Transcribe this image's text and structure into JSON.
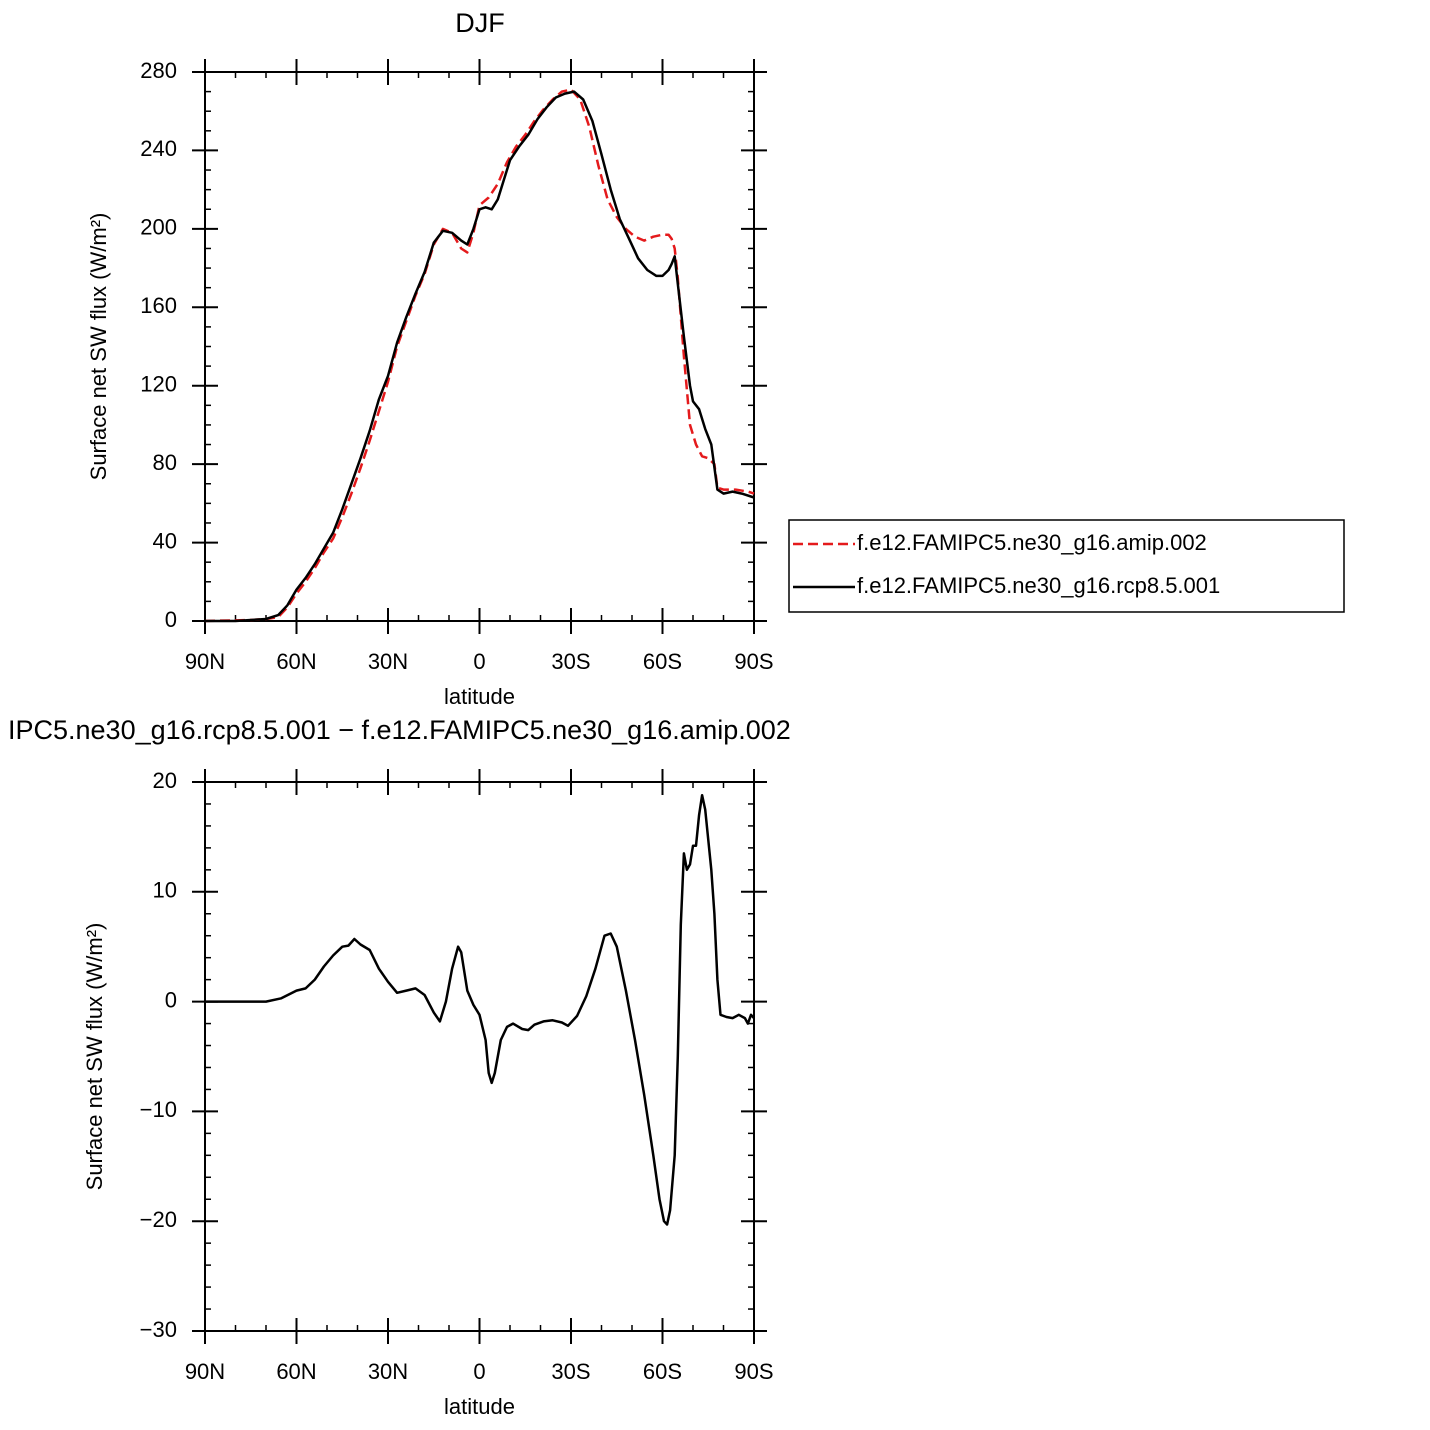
{
  "chart_data": [
    {
      "type": "line",
      "title": "DJF",
      "xlabel": "latitude",
      "ylabel": "Surface net SW flux (W/m²)",
      "xlim": [
        90,
        -90
      ],
      "xticks": [
        {
          "value": 90,
          "label": "90N"
        },
        {
          "value": 60,
          "label": "60N"
        },
        {
          "value": 30,
          "label": "30N"
        },
        0,
        {
          "value": -30,
          "label": "30S"
        },
        {
          "value": -60,
          "label": "60S"
        },
        {
          "value": -90,
          "label": "90S"
        }
      ],
      "ylim": [
        0,
        280
      ],
      "yticks": [
        0,
        40,
        80,
        120,
        160,
        200,
        240,
        280
      ],
      "legend": "right",
      "series": [
        {
          "name": "f.e12.FAMIPC5.ne30_g16.amip.002",
          "color": "#e41a1c",
          "line_style": "dashed",
          "x": [
            90,
            75,
            70,
            66,
            63,
            60,
            57,
            54,
            51,
            48,
            45,
            42,
            39,
            36,
            33,
            30,
            27,
            24,
            21,
            18,
            15,
            12,
            9,
            6,
            4,
            2,
            0,
            -3,
            -6,
            -9,
            -12,
            -15,
            -18,
            -21,
            -24,
            -27,
            -30,
            -33,
            -36,
            -39,
            -42,
            -45,
            -48,
            -51,
            -54,
            -57,
            -60,
            -62,
            -63,
            -64,
            -65,
            -67,
            -69,
            -71,
            -73,
            -75,
            -77,
            -78,
            -80,
            -84,
            -88,
            -90
          ],
          "values": [
            0,
            0.5,
            1,
            2,
            7,
            14,
            20,
            27,
            35,
            42,
            53,
            65,
            78,
            92,
            107,
            122,
            140,
            153,
            166,
            177,
            192,
            200,
            198,
            190,
            188,
            198,
            212,
            216,
            223,
            234,
            242,
            248,
            255,
            261,
            266,
            270,
            271,
            266,
            252,
            232,
            215,
            206,
            200,
            196,
            194,
            196,
            197,
            197,
            195,
            190,
            175,
            135,
            100,
            90,
            84,
            83,
            80,
            68,
            67,
            67,
            66,
            65
          ]
        },
        {
          "name": "f.e12.FAMIPC5.ne30_g16.rcp8.5.001",
          "color": "#000000",
          "line_style": "solid",
          "x": [
            90,
            80,
            75,
            70,
            66,
            63,
            60,
            57,
            54,
            51,
            48,
            45,
            42,
            39,
            36,
            33,
            30,
            27,
            24,
            21,
            18,
            15,
            12,
            9,
            6,
            4,
            2,
            0,
            -2,
            -4,
            -6,
            -8,
            -10,
            -13,
            -16,
            -19,
            -22,
            -25,
            -28,
            -31,
            -34,
            -37,
            -40,
            -43,
            -46,
            -49,
            -52,
            -55,
            -58,
            -60,
            -62,
            -63,
            -64,
            -65,
            -67,
            -69,
            -70,
            -72,
            -74,
            -76,
            -78,
            -80,
            -83,
            -86,
            -90
          ],
          "values": [
            0,
            0,
            0.5,
            1,
            3,
            8,
            16,
            22,
            29,
            37,
            45,
            57,
            70,
            83,
            97,
            113,
            125,
            142,
            155,
            167,
            178,
            193,
            199,
            198,
            194,
            192,
            200,
            210,
            211,
            210,
            215,
            225,
            235,
            242,
            248,
            256,
            262,
            267,
            269,
            270,
            266,
            255,
            238,
            220,
            205,
            195,
            185,
            179,
            176,
            176,
            179,
            182,
            186,
            172,
            145,
            120,
            112,
            108,
            98,
            90,
            67,
            65,
            66,
            65,
            63
          ]
        }
      ]
    },
    {
      "type": "line",
      "title": "IPC5.ne30_g16.rcp8.5.001 − f.e12.FAMIPC5.ne30_g16.amip.002",
      "xlabel": "latitude",
      "ylabel": "Surface net SW flux (W/m²)",
      "xlim": [
        90,
        -90
      ],
      "xticks": [
        {
          "value": 90,
          "label": "90N"
        },
        {
          "value": 60,
          "label": "60N"
        },
        {
          "value": 30,
          "label": "30N"
        },
        0,
        {
          "value": -30,
          "label": "30S"
        },
        {
          "value": -60,
          "label": "60S"
        },
        {
          "value": -90,
          "label": "90S"
        }
      ],
      "ylim": [
        -30,
        20
      ],
      "yticks": [
        {
          "value": -30,
          "label": "−30"
        },
        {
          "value": -20,
          "label": "−20"
        },
        {
          "value": -10,
          "label": "−10"
        },
        0,
        10,
        20
      ],
      "series": [
        {
          "color": "#000000",
          "line_style": "solid",
          "x": [
            90,
            70,
            65,
            60,
            57,
            54,
            51,
            48,
            45,
            43,
            41,
            39,
            36,
            33,
            30,
            27,
            24,
            21,
            18,
            15,
            13,
            11,
            9,
            7,
            6,
            4,
            2,
            0,
            -2,
            -3,
            -4,
            -5,
            -7,
            -9,
            -11,
            -14,
            -16,
            -18,
            -21,
            -24,
            -27,
            -29,
            -32,
            -35,
            -38,
            -41,
            -43,
            -45,
            -48,
            -51,
            -54,
            -57,
            -59,
            -60.5,
            -61.5,
            -62.5,
            -64,
            -65,
            -66,
            -67,
            -68,
            -69,
            -70,
            -71,
            -72,
            -73,
            -74,
            -76,
            -77,
            -78,
            -79,
            -81,
            -83,
            -85,
            -87,
            -88,
            -89,
            -90
          ],
          "values": [
            0,
            0,
            0.3,
            1,
            1.2,
            2,
            3.2,
            4.2,
            5,
            5.1,
            5.7,
            5.2,
            4.7,
            3,
            1.8,
            0.8,
            1,
            1.2,
            0.6,
            -1,
            -1.8,
            0,
            3,
            5,
            4.5,
            1,
            -0.3,
            -1.2,
            -3.5,
            -6.5,
            -7.4,
            -6.5,
            -3.5,
            -2.3,
            -2,
            -2.5,
            -2.6,
            -2.1,
            -1.8,
            -1.7,
            -1.9,
            -2.2,
            -1.3,
            0.5,
            3,
            6,
            6.2,
            5,
            1,
            -3.5,
            -8.5,
            -14,
            -18,
            -20,
            -20.3,
            -19,
            -14,
            -5,
            7,
            13.5,
            12,
            12.5,
            14.2,
            14.2,
            17,
            18.8,
            17.5,
            12,
            8,
            2,
            -1.2,
            -1.4,
            -1.5,
            -1.2,
            -1.5,
            -2,
            -1.2,
            -1.5
          ]
        }
      ]
    }
  ]
}
